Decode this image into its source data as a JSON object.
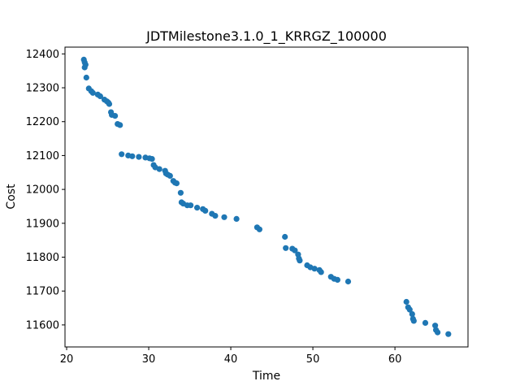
{
  "chart_data": {
    "type": "scatter",
    "title": "JDTMilestone3.1.0_1_KRRGZ_100000",
    "xlabel": "Time",
    "ylabel": "Cost",
    "xlim": [
      19.8,
      68.9
    ],
    "ylim": [
      11535,
      12420
    ],
    "xticks": [
      20,
      30,
      40,
      50,
      60
    ],
    "yticks": [
      11600,
      11700,
      11800,
      11900,
      12000,
      12100,
      12200,
      12300,
      12400
    ],
    "grid": false,
    "color": "#1f77b4",
    "points": [
      [
        22.1,
        12383
      ],
      [
        22.2,
        12375
      ],
      [
        22.3,
        12368
      ],
      [
        22.2,
        12360
      ],
      [
        22.4,
        12330
      ],
      [
        22.7,
        12298
      ],
      [
        23.0,
        12290
      ],
      [
        23.2,
        12285
      ],
      [
        23.8,
        12280
      ],
      [
        24.1,
        12275
      ],
      [
        24.6,
        12265
      ],
      [
        24.9,
        12260
      ],
      [
        25.1,
        12256
      ],
      [
        25.2,
        12252
      ],
      [
        25.4,
        12228
      ],
      [
        25.5,
        12220
      ],
      [
        25.9,
        12217
      ],
      [
        26.2,
        12193
      ],
      [
        26.5,
        12190
      ],
      [
        26.7,
        12104
      ],
      [
        27.5,
        12100
      ],
      [
        28.0,
        12098
      ],
      [
        28.8,
        12096
      ],
      [
        29.6,
        12094
      ],
      [
        30.1,
        12092
      ],
      [
        30.4,
        12090
      ],
      [
        30.6,
        12072
      ],
      [
        30.8,
        12065
      ],
      [
        31.3,
        12060
      ],
      [
        32.0,
        12055
      ],
      [
        32.1,
        12047
      ],
      [
        32.3,
        12044
      ],
      [
        32.6,
        12040
      ],
      [
        33.0,
        12025
      ],
      [
        33.2,
        12020
      ],
      [
        33.4,
        12018
      ],
      [
        33.9,
        11990
      ],
      [
        34.0,
        11962
      ],
      [
        34.2,
        11958
      ],
      [
        34.7,
        11953
      ],
      [
        35.1,
        11953
      ],
      [
        35.9,
        11946
      ],
      [
        36.6,
        11942
      ],
      [
        36.9,
        11937
      ],
      [
        37.7,
        11928
      ],
      [
        38.1,
        11922
      ],
      [
        39.2,
        11918
      ],
      [
        40.7,
        11913
      ],
      [
        43.2,
        11888
      ],
      [
        43.5,
        11882
      ],
      [
        46.6,
        11860
      ],
      [
        46.7,
        11827
      ],
      [
        47.5,
        11825
      ],
      [
        47.8,
        11820
      ],
      [
        48.2,
        11808
      ],
      [
        48.3,
        11796
      ],
      [
        48.4,
        11790
      ],
      [
        49.3,
        11776
      ],
      [
        49.7,
        11770
      ],
      [
        50.2,
        11766
      ],
      [
        50.8,
        11762
      ],
      [
        51.0,
        11756
      ],
      [
        52.2,
        11742
      ],
      [
        52.6,
        11736
      ],
      [
        53.0,
        11733
      ],
      [
        54.3,
        11728
      ],
      [
        61.4,
        11668
      ],
      [
        61.6,
        11652
      ],
      [
        61.8,
        11645
      ],
      [
        62.1,
        11632
      ],
      [
        62.2,
        11618
      ],
      [
        62.3,
        11612
      ],
      [
        63.7,
        11606
      ],
      [
        64.9,
        11598
      ],
      [
        65.0,
        11585
      ],
      [
        65.2,
        11578
      ],
      [
        66.5,
        11573
      ]
    ]
  }
}
